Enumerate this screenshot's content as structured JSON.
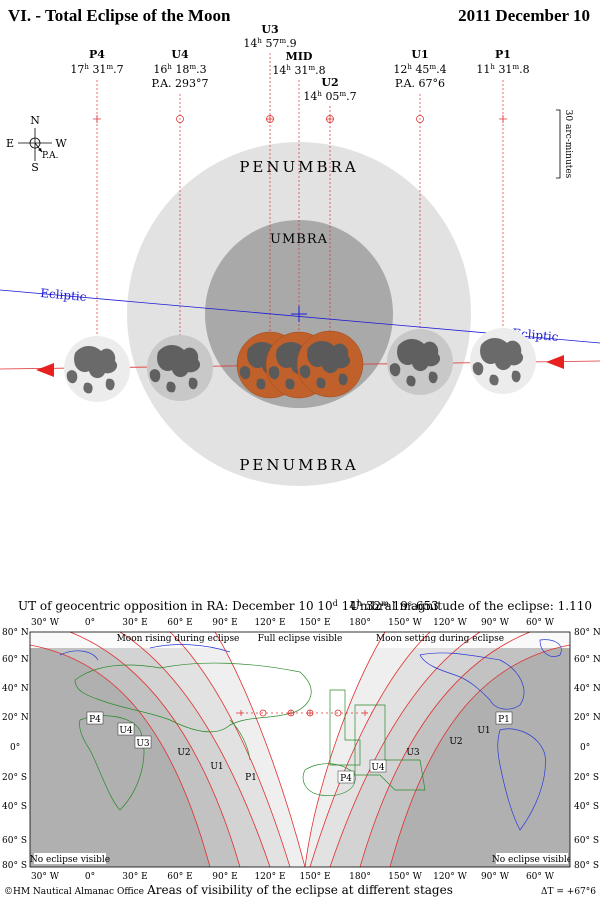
{
  "header": {
    "title": "VI. - Total Eclipse of the Moon",
    "date": "2011 December 10"
  },
  "contacts": [
    {
      "id": "P4",
      "h": "17",
      "m": "31",
      "s": "7",
      "pa": ""
    },
    {
      "id": "U4",
      "h": "16",
      "m": "18",
      "s": "3",
      "pa": "P.A. 293°7"
    },
    {
      "id": "U3",
      "h": "14",
      "m": "57",
      "s": "9",
      "pa": ""
    },
    {
      "id": "MID",
      "h": "14",
      "m": "31",
      "s": "8",
      "pa": ""
    },
    {
      "id": "U2",
      "h": "14",
      "m": "05",
      "s": "7",
      "pa": ""
    },
    {
      "id": "U1",
      "h": "12",
      "m": "45",
      "s": "4",
      "pa": "P.A. 67°6"
    },
    {
      "id": "P1",
      "h": "11",
      "m": "31",
      "s": "8",
      "pa": ""
    }
  ],
  "labels": {
    "penumbra": "PENUMBRA",
    "umbra": "UMBRA",
    "ecliptic": "Ecliptic",
    "scale": "30 arc-minutes",
    "compass": {
      "n": "N",
      "s": "S",
      "e": "E",
      "w": "W",
      "pa": "P.A."
    }
  },
  "map": {
    "opposition": "UT of geocentric opposition in RA: December 10",
    "opp_d": "d",
    "opp_h": "14",
    "opp_hu": "h",
    "opp_m": "32",
    "opp_mu": "m",
    "opp_s": "19",
    "opp_su": "s",
    "opp_frac": "653",
    "magnitude": "Umbral magnitude of the eclipse: 1.110",
    "lon_labels": [
      "30° W",
      "0°",
      "30° E",
      "60° E",
      "90° E",
      "120° E",
      "150° E",
      "180°",
      "150° W",
      "120° W",
      "90° W",
      "60° W"
    ],
    "lat_labels": [
      "80° N",
      "60° N",
      "40° N",
      "20° N",
      "0°",
      "20° S",
      "40° S",
      "60° S",
      "80° S"
    ],
    "rising": "Moon rising during eclipse",
    "full": "Full eclipse visible",
    "setting": "Moon setting during eclipse",
    "no_vis_left": "No eclipse visible",
    "no_vis_right": "No eclipse visible",
    "footer_left": "©HM Nautical Almanac Office",
    "footer_center": "Areas of visibility of the eclipse at different stages",
    "footer_right": "ΔT = +67°6",
    "zone_labels_left": [
      "P4",
      "U4",
      "U3",
      "U2",
      "U1",
      "P1"
    ],
    "zone_labels_right": [
      "P4",
      "U4",
      "U3",
      "U2",
      "U1",
      "P1"
    ]
  },
  "colors": {
    "penumbra": "#e2e2e2",
    "umbra": "#a9a9a9",
    "moon_umbra": "#c0602a",
    "ecliptic": "#1a1ad6",
    "contact_line": "#e03030",
    "night": "#9c9c9c"
  }
}
